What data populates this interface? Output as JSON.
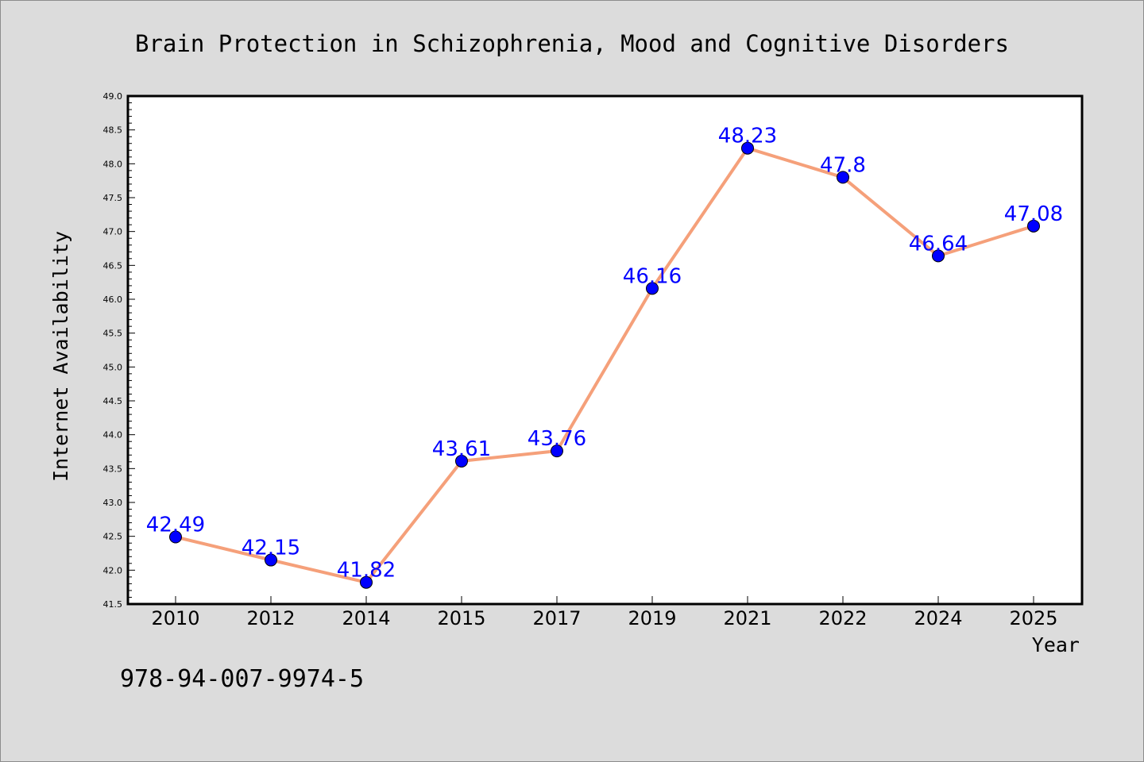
{
  "chart_data": {
    "type": "line",
    "title": "Brain Protection in Schizophrenia, Mood and Cognitive Disorders",
    "xlabel": "Year",
    "ylabel": "Internet Availability",
    "categories": [
      "2010",
      "2012",
      "2014",
      "2015",
      "2017",
      "2019",
      "2021",
      "2022",
      "2024",
      "2025"
    ],
    "series": [
      {
        "values": [
          42.49,
          42.15,
          41.82,
          43.61,
          43.76,
          46.16,
          48.23,
          47.8,
          46.64,
          47.08
        ],
        "labels": [
          "42.49",
          "42.15",
          "41.82",
          "43.61",
          "43.76",
          "46.16",
          "48.23",
          "47.8",
          "46.64",
          "47.08"
        ],
        "line_color": "#f5a07a",
        "marker_color": "#0000ff",
        "label_color": "#0000ff"
      }
    ],
    "ylim": [
      41.5,
      49.0
    ],
    "ytick_step": 0.5,
    "grid": false,
    "legend": "none"
  },
  "footer": {
    "isbn": "978-94-007-9974-5"
  },
  "colors": {
    "background": "#dcdcdc",
    "plot_background": "#ffffff",
    "axis": "#000000"
  }
}
